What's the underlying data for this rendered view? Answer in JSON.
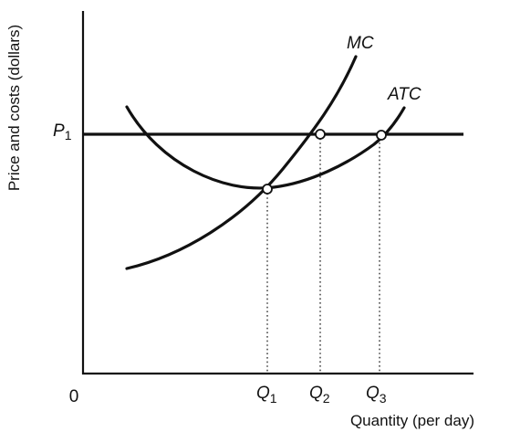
{
  "axes": {
    "y_label": "Price and costs (dollars)",
    "x_label": "Quantity (per day)",
    "origin_label": "0"
  },
  "price_line": {
    "symbol": "P",
    "subscript": "1"
  },
  "curves": [
    {
      "id": "mc",
      "label": "MC"
    },
    {
      "id": "atc",
      "label": "ATC"
    }
  ],
  "quantities": [
    {
      "symbol": "Q",
      "subscript": "1"
    },
    {
      "symbol": "Q",
      "subscript": "2"
    },
    {
      "symbol": "Q",
      "subscript": "3"
    }
  ]
}
